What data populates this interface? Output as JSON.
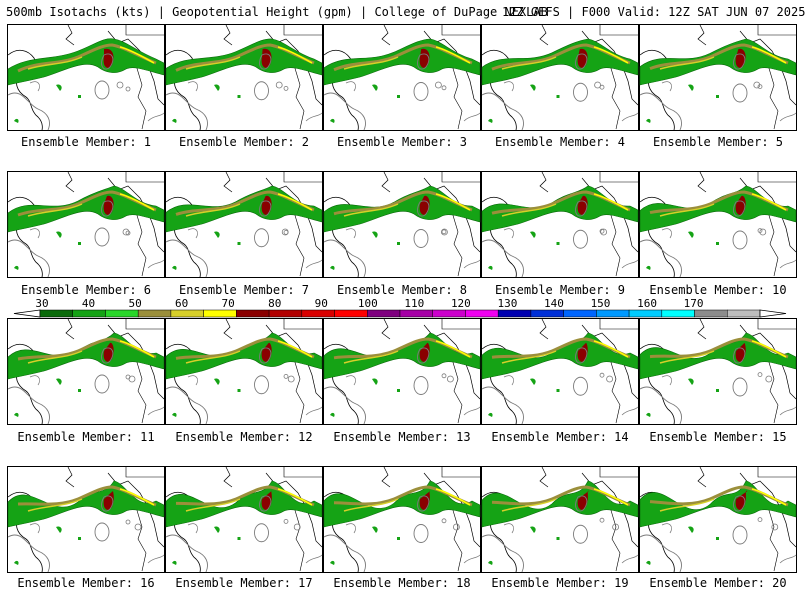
{
  "header": {
    "left": "500mb Isotachs (kts) | Geopotential Height (gpm) | College of DuPage NEXLAB",
    "right": "12Z GEFS | F000 Valid: 12Z SAT JUN 07 2025"
  },
  "colorbar": {
    "ticks": [
      "30",
      "40",
      "50",
      "60",
      "70",
      "80",
      "90",
      "100",
      "110",
      "120",
      "130",
      "140",
      "150",
      "160",
      "170"
    ],
    "colors": [
      "#0a6b0a",
      "#15a315",
      "#29d729",
      "#9b8f3b",
      "#d7cf29",
      "#ffff00",
      "#8a0000",
      "#b20000",
      "#d90000",
      "#ff0000",
      "#7f007f",
      "#a600a6",
      "#cc00cc",
      "#f000f0",
      "#0000b0",
      "#0030d8",
      "#0066ff",
      "#0099ff",
      "#00ccff",
      "#00ffff",
      "#8c8c8c",
      "#bdbdbd"
    ]
  },
  "members": [
    {
      "label": "Ensemble Member: 1"
    },
    {
      "label": "Ensemble Member: 2"
    },
    {
      "label": "Ensemble Member: 3"
    },
    {
      "label": "Ensemble Member: 4"
    },
    {
      "label": "Ensemble Member: 5"
    },
    {
      "label": "Ensemble Member: 6"
    },
    {
      "label": "Ensemble Member: 7"
    },
    {
      "label": "Ensemble Member: 8"
    },
    {
      "label": "Ensemble Member: 9"
    },
    {
      "label": "Ensemble Member: 10"
    },
    {
      "label": "Ensemble Member: 11"
    },
    {
      "label": "Ensemble Member: 12"
    },
    {
      "label": "Ensemble Member: 13"
    },
    {
      "label": "Ensemble Member: 14"
    },
    {
      "label": "Ensemble Member: 15"
    },
    {
      "label": "Ensemble Member: 16"
    },
    {
      "label": "Ensemble Member: 17"
    },
    {
      "label": "Ensemble Member: 18"
    },
    {
      "label": "Ensemble Member: 19"
    },
    {
      "label": "Ensemble Member: 20"
    }
  ]
}
